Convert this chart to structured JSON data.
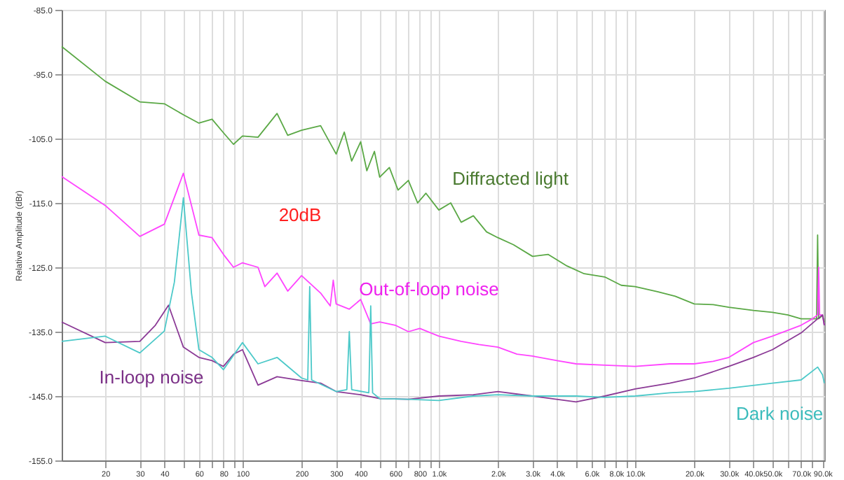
{
  "chart_data": {
    "type": "line",
    "ylabel": "Relative Amplitude (dBr)",
    "xlim": [
      12,
      92000
    ],
    "ylim": [
      -155,
      -85
    ],
    "log": "x",
    "grid": true,
    "marker": "none",
    "line_style": "solid",
    "yticks": [
      {
        "value": -155,
        "label": "-155.0"
      },
      {
        "value": -145,
        "label": "-145.0"
      },
      {
        "value": -135,
        "label": "-135.0"
      },
      {
        "value": -125,
        "label": "-125.0"
      },
      {
        "value": -115,
        "label": "-115.0"
      },
      {
        "value": -105,
        "label": "-105.0"
      },
      {
        "value": -95,
        "label": "-95.0"
      },
      {
        "value": -85,
        "label": "-85.0"
      }
    ],
    "xticks": [
      20,
      30,
      40,
      {
        "value": 50,
        "label": null
      },
      60,
      {
        "value": 70,
        "label": null
      },
      80,
      {
        "value": 90,
        "label": null
      },
      100,
      200,
      300,
      400,
      {
        "value": 500,
        "label": null
      },
      600,
      {
        "value": 700,
        "label": null
      },
      800,
      {
        "value": 900,
        "label": null
      },
      {
        "value": 1000,
        "label": "1.0k"
      },
      {
        "value": 2000,
        "label": "2.0k"
      },
      {
        "value": 3000,
        "label": "3.0k"
      },
      {
        "value": 4000,
        "label": "4.0k"
      },
      {
        "value": 5000,
        "label": null
      },
      {
        "value": 6000,
        "label": "6.0k"
      },
      {
        "value": 7000,
        "label": null
      },
      {
        "value": 8000,
        "label": "8.0k"
      },
      {
        "value": 9000,
        "label": null
      },
      {
        "value": 10000,
        "label": "10.0k"
      },
      {
        "value": 20000,
        "label": "20.0k"
      },
      {
        "value": 30000,
        "label": "30.0k"
      },
      {
        "value": 40000,
        "label": "40.0k"
      },
      {
        "value": 50000,
        "label": "50.0k"
      },
      {
        "value": 60000,
        "label": null
      },
      {
        "value": 70000,
        "label": "70.0k"
      },
      {
        "value": 80000,
        "label": null
      },
      {
        "value": 90000,
        "label": "90.0k"
      }
    ],
    "series": [
      {
        "color": "#5aa845",
        "x": [
          12,
          20,
          30,
          40,
          50,
          60,
          70,
          80,
          90,
          100,
          120,
          150,
          170,
          200,
          250,
          300,
          330,
          360,
          400,
          430,
          470,
          500,
          560,
          620,
          700,
          780,
          860,
          1000,
          1150,
          1300,
          1500,
          1750,
          2000,
          2400,
          3000,
          3600,
          4500,
          5500,
          7000,
          8500,
          10000,
          13000,
          16000,
          20000,
          25000,
          30000,
          40000,
          50000,
          60000,
          70000,
          80000,
          84000,
          85000,
          86000,
          90000,
          92000
        ],
        "values": [
          -90.7,
          -96.1,
          -99.3,
          -99.6,
          -101.3,
          -102.6,
          -102.0,
          -104.1,
          -105.9,
          -104.6,
          -104.8,
          -101.1,
          -104.5,
          -103.7,
          -103.0,
          -107.4,
          -104.0,
          -108.5,
          -105.5,
          -110.0,
          -107.0,
          -111.0,
          -109.5,
          -113.0,
          -111.5,
          -115.0,
          -113.5,
          -116.1,
          -115.0,
          -118.0,
          -117.0,
          -119.5,
          -120.4,
          -121.5,
          -123.3,
          -123.0,
          -124.8,
          -126.0,
          -126.5,
          -127.8,
          -128.0,
          -128.8,
          -129.5,
          -130.7,
          -130.8,
          -131.2,
          -131.7,
          -132.0,
          -132.4,
          -133.0,
          -133.0,
          -133.0,
          -120.0,
          -133.0,
          -132.5,
          -133.5
        ]
      },
      {
        "color": "#ff44ff",
        "x": [
          12,
          20,
          30,
          40,
          50,
          60,
          70,
          80,
          90,
          100,
          120,
          130,
          150,
          170,
          200,
          250,
          280,
          290,
          300,
          350,
          400,
          450,
          500,
          600,
          700,
          800,
          1000,
          1300,
          1600,
          2000,
          2500,
          3000,
          4000,
          5000,
          7000,
          10000,
          15000,
          20000,
          25000,
          30000,
          40000,
          50000,
          70000,
          80000,
          85000,
          86000,
          87000,
          90000,
          92000
        ],
        "values": [
          -110.9,
          -115.4,
          -120.2,
          -118.3,
          -110.4,
          -120.0,
          -120.4,
          -123.0,
          -125.0,
          -124.3,
          -125.0,
          -128.0,
          -125.9,
          -128.7,
          -126.3,
          -129.0,
          -131.0,
          -127.0,
          -130.7,
          -131.5,
          -130.0,
          -133.8,
          -133.5,
          -134.0,
          -135.0,
          -134.5,
          -135.7,
          -136.5,
          -137.0,
          -137.4,
          -138.5,
          -138.8,
          -139.5,
          -140.0,
          -140.2,
          -140.4,
          -140.0,
          -140.0,
          -139.6,
          -139.0,
          -136.7,
          -135.7,
          -134.0,
          -133.0,
          -132.4,
          -125.0,
          -132.4,
          -132.4,
          -134.0
        ]
      },
      {
        "color": "#8b3a96",
        "x": [
          12,
          20,
          30,
          36,
          42,
          50,
          60,
          70,
          80,
          90,
          100,
          120,
          150,
          200,
          250,
          300,
          400,
          500,
          700,
          1000,
          1500,
          2000,
          3000,
          5000,
          7000,
          10000,
          15000,
          20000,
          30000,
          40000,
          50000,
          70000,
          85000,
          90000,
          92000
        ],
        "values": [
          -133.5,
          -136.7,
          -136.5,
          -134.0,
          -130.9,
          -137.4,
          -139.0,
          -139.5,
          -140.4,
          -138.5,
          -137.8,
          -143.3,
          -142.0,
          -142.6,
          -143.0,
          -144.3,
          -144.8,
          -145.4,
          -145.5,
          -145.0,
          -144.8,
          -144.3,
          -145.0,
          -145.9,
          -145.0,
          -143.9,
          -143.0,
          -142.2,
          -140.4,
          -139.0,
          -137.8,
          -135.2,
          -133.0,
          -132.4,
          -134.0
        ]
      },
      {
        "color": "#4cc9c9",
        "x": [
          12,
          20,
          30,
          40,
          45,
          50,
          55,
          60,
          70,
          80,
          100,
          120,
          150,
          200,
          215,
          220,
          225,
          300,
          340,
          350,
          360,
          440,
          450,
          460,
          500,
          700,
          1000,
          1500,
          2000,
          3000,
          5000,
          7000,
          10000,
          15000,
          20000,
          30000,
          50000,
          70000,
          85000,
          90000,
          92000
        ],
        "values": [
          -136.5,
          -135.7,
          -138.3,
          -134.9,
          -127.3,
          -114.2,
          -129.0,
          -137.8,
          -139.0,
          -140.9,
          -136.7,
          -140.0,
          -139.0,
          -142.2,
          -142.5,
          -128.0,
          -142.5,
          -144.3,
          -144.0,
          -135.0,
          -144.0,
          -144.5,
          -131.0,
          -144.5,
          -145.4,
          -145.5,
          -145.7,
          -145.0,
          -144.8,
          -145.0,
          -145.0,
          -145.2,
          -145.0,
          -144.5,
          -144.3,
          -143.8,
          -143.0,
          -142.5,
          -140.5,
          -141.7,
          -143.0
        ]
      }
    ],
    "annotations": [
      "Diffracted light",
      "Out-of-loop noise",
      "In-loop noise",
      "Dark noise",
      "20dB"
    ]
  }
}
